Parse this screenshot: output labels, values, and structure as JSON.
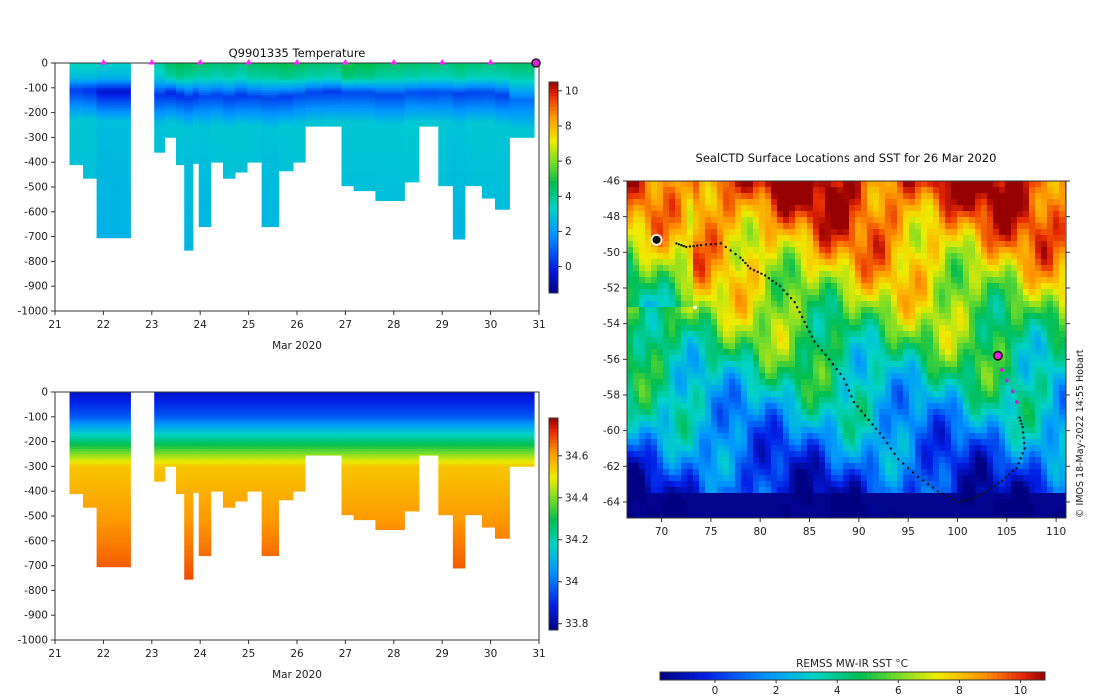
{
  "chart_data": [
    {
      "type": "heatmap",
      "title": "Q9901335  Temperature",
      "xlabel": "Mar 2020",
      "x_ticks": [
        "21",
        "22",
        "23",
        "24",
        "25",
        "26",
        "27",
        "28",
        "29",
        "30",
        "31"
      ],
      "xlim": [
        21,
        31
      ],
      "ylim": [
        -1000,
        0
      ],
      "y_ticks": [
        "0",
        "-100",
        "-200",
        "-300",
        "-400",
        "-500",
        "-600",
        "-700",
        "-800",
        "-900",
        "-1000"
      ],
      "colorbar": {
        "ticks": [
          "0",
          "2",
          "4",
          "6",
          "8",
          "10"
        ],
        "range": [
          -1.5,
          10.5
        ],
        "cmap": "jet"
      },
      "surface_marker_days": [
        22,
        23,
        24,
        25,
        26,
        27,
        28,
        29,
        30
      ],
      "profiles": [
        {
          "day": 21.3,
          "width": 0.28,
          "max_depth": 410,
          "surface": 3.5,
          "min_t": 0.4,
          "min_depth": 110,
          "deep": 3.0
        },
        {
          "day": 21.58,
          "width": 0.28,
          "max_depth": 465,
          "surface": 3.5,
          "min_t": 0.2,
          "min_depth": 110,
          "deep": 3.0
        },
        {
          "day": 21.86,
          "width": 0.7,
          "max_depth": 705,
          "surface": 3.3,
          "min_t": -0.4,
          "min_depth": 115,
          "deep": 2.8
        },
        {
          "day": 23.05,
          "width": 0.22,
          "max_depth": 360,
          "surface": 3.8,
          "min_t": 0.3,
          "min_depth": 130,
          "deep": 2.9
        },
        {
          "day": 23.27,
          "width": 0.23,
          "max_depth": 300,
          "surface": 4.5,
          "min_t": 0.0,
          "min_depth": 120,
          "deep": 3.0
        },
        {
          "day": 23.5,
          "width": 0.17,
          "max_depth": 410,
          "surface": 4.8,
          "min_t": 0.1,
          "min_depth": 130,
          "deep": 3.0
        },
        {
          "day": 23.67,
          "width": 0.18,
          "max_depth": 755,
          "surface": 4.6,
          "min_t": 0.3,
          "min_depth": 140,
          "deep": 2.9
        },
        {
          "day": 23.85,
          "width": 0.12,
          "max_depth": 405,
          "surface": 4.5,
          "min_t": 0.2,
          "min_depth": 130,
          "deep": 3.0
        },
        {
          "day": 23.97,
          "width": 0.25,
          "max_depth": 660,
          "surface": 4.4,
          "min_t": 0.6,
          "min_depth": 135,
          "deep": 2.9
        },
        {
          "day": 24.22,
          "width": 0.25,
          "max_depth": 400,
          "surface": 4.3,
          "min_t": 0.5,
          "min_depth": 130,
          "deep": 3.0
        },
        {
          "day": 24.47,
          "width": 0.25,
          "max_depth": 465,
          "surface": 4.4,
          "min_t": 0.4,
          "min_depth": 140,
          "deep": 3.0
        },
        {
          "day": 24.72,
          "width": 0.25,
          "max_depth": 440,
          "surface": 4.2,
          "min_t": 0.3,
          "min_depth": 130,
          "deep": 3.0
        },
        {
          "day": 24.97,
          "width": 0.3,
          "max_depth": 400,
          "surface": 4.5,
          "min_t": 0.5,
          "min_depth": 135,
          "deep": 3.0
        },
        {
          "day": 25.27,
          "width": 0.35,
          "max_depth": 660,
          "surface": 4.6,
          "min_t": 0.5,
          "min_depth": 140,
          "deep": 2.9
        },
        {
          "day": 25.62,
          "width": 0.3,
          "max_depth": 435,
          "surface": 4.8,
          "min_t": 0.4,
          "min_depth": 135,
          "deep": 3.0
        },
        {
          "day": 25.92,
          "width": 0.25,
          "max_depth": 400,
          "surface": 4.6,
          "min_t": 0.6,
          "min_depth": 130,
          "deep": 3.0
        },
        {
          "day": 26.17,
          "width": 0.35,
          "max_depth": 255,
          "surface": 4.4,
          "min_t": 0.5,
          "min_depth": 120,
          "deep": 3.0
        },
        {
          "day": 26.52,
          "width": 0.4,
          "max_depth": 255,
          "surface": 4.3,
          "min_t": 0.4,
          "min_depth": 115,
          "deep": 3.0
        },
        {
          "day": 26.92,
          "width": 0.25,
          "max_depth": 495,
          "surface": 5.0,
          "min_t": 0.6,
          "min_depth": 120,
          "deep": 3.0
        },
        {
          "day": 27.17,
          "width": 0.45,
          "max_depth": 515,
          "surface": 4.8,
          "min_t": 0.6,
          "min_depth": 120,
          "deep": 3.0
        },
        {
          "day": 27.62,
          "width": 0.6,
          "max_depth": 555,
          "surface": 4.5,
          "min_t": 0.6,
          "min_depth": 130,
          "deep": 3.0
        },
        {
          "day": 28.22,
          "width": 0.3,
          "max_depth": 480,
          "surface": 4.4,
          "min_t": 0.7,
          "min_depth": 120,
          "deep": 3.1
        },
        {
          "day": 28.52,
          "width": 0.4,
          "max_depth": 255,
          "surface": 4.3,
          "min_t": 0.6,
          "min_depth": 120,
          "deep": 3.1
        },
        {
          "day": 28.92,
          "width": 0.3,
          "max_depth": 495,
          "surface": 4.2,
          "min_t": 0.7,
          "min_depth": 120,
          "deep": 3.0
        },
        {
          "day": 29.22,
          "width": 0.25,
          "max_depth": 710,
          "surface": 4.5,
          "min_t": 0.5,
          "min_depth": 125,
          "deep": 2.9
        },
        {
          "day": 29.47,
          "width": 0.35,
          "max_depth": 495,
          "surface": 4.3,
          "min_t": 0.5,
          "min_depth": 120,
          "deep": 3.0
        },
        {
          "day": 29.82,
          "width": 0.27,
          "max_depth": 545,
          "surface": 4.2,
          "min_t": 0.6,
          "min_depth": 120,
          "deep": 3.0
        },
        {
          "day": 30.09,
          "width": 0.3,
          "max_depth": 590,
          "surface": 4.3,
          "min_t": 0.5,
          "min_depth": 130,
          "deep": 3.0
        },
        {
          "day": 30.39,
          "width": 0.51,
          "max_depth": 300,
          "surface": 4.5,
          "min_t": 1.2,
          "min_depth": 150,
          "deep": 3.0
        }
      ]
    },
    {
      "type": "heatmap",
      "title": "",
      "xlabel": "Mar 2020",
      "x_ticks": [
        "21",
        "22",
        "23",
        "24",
        "25",
        "26",
        "27",
        "28",
        "29",
        "30",
        "31"
      ],
      "xlim": [
        21,
        31
      ],
      "ylim": [
        -1000,
        0
      ],
      "y_ticks": [
        "0",
        "-100",
        "-200",
        "-300",
        "-400",
        "-500",
        "-600",
        "-700",
        "-800",
        "-900",
        "-1000"
      ],
      "colorbar": {
        "ticks": [
          "33.8",
          "34",
          "34.2",
          "34.4",
          "34.6"
        ],
        "range": [
          33.77,
          34.78
        ],
        "cmap": "jet"
      },
      "profiles_note": "same profile casts as temperature section, salinity field",
      "salinity_model": {
        "surface": 33.85,
        "halocline_top": 100,
        "halocline_bottom": 300,
        "deep_value": 34.7,
        "deep_gradient_per_100m": 0.015
      }
    },
    {
      "type": "heatmap",
      "title": "SealCTD Surface Locations and SST for 26 Mar 2020",
      "xlabel": "",
      "ylabel": "",
      "x_ticks": [
        "70",
        "75",
        "80",
        "85",
        "90",
        "95",
        "100",
        "105",
        "110"
      ],
      "xlim": [
        66.5,
        111
      ],
      "y_ticks": [
        "-46",
        "-48",
        "-50",
        "-52",
        "-54",
        "-56",
        "-58",
        "-60",
        "-62",
        "-64"
      ],
      "ylim": [
        -64.9,
        -46
      ],
      "colorbar": {
        "label": "REMSS MW-IR SST °C",
        "ticks": [
          "0",
          "2",
          "4",
          "6",
          "8",
          "10"
        ],
        "range": [
          -1.8,
          10.8
        ],
        "cmap": "jet"
      },
      "track_black_lonlat": [
        [
          71.5,
          -49.5
        ],
        [
          72.5,
          -49.7
        ],
        [
          74,
          -49.6
        ],
        [
          76,
          -49.5
        ],
        [
          78,
          -50.3
        ],
        [
          79,
          -50.9
        ],
        [
          80.5,
          -51.3
        ],
        [
          82,
          -51.9
        ],
        [
          83.5,
          -52.8
        ],
        [
          84.5,
          -53.9
        ],
        [
          85.5,
          -55.0
        ],
        [
          87,
          -56.0
        ],
        [
          88.5,
          -57.1
        ],
        [
          89.5,
          -58.4
        ],
        [
          91,
          -59.4
        ],
        [
          92.5,
          -60.4
        ],
        [
          94,
          -61.6
        ],
        [
          96,
          -62.6
        ],
        [
          98,
          -63.4
        ],
        [
          100,
          -64.0
        ],
        [
          101.5,
          -63.8
        ],
        [
          103,
          -63.4
        ],
        [
          104.5,
          -62.8
        ],
        [
          106,
          -62.1
        ],
        [
          106.8,
          -61.0
        ],
        [
          106.6,
          -59.8
        ],
        [
          106.2,
          -59.1
        ]
      ],
      "track_magenta_lonlat": [
        [
          104.1,
          -55.9
        ],
        [
          104.5,
          -56.6
        ],
        [
          105,
          -57.2
        ],
        [
          105.6,
          -57.8
        ],
        [
          106,
          -58.4
        ]
      ],
      "current_location_lonlat": [
        104.1,
        -55.8
      ],
      "colony_lonlat": [
        69.5,
        -49.3
      ]
    }
  ],
  "footer": {
    "credit": "© IMOS 18-May-2022 14:55 Hobart"
  }
}
